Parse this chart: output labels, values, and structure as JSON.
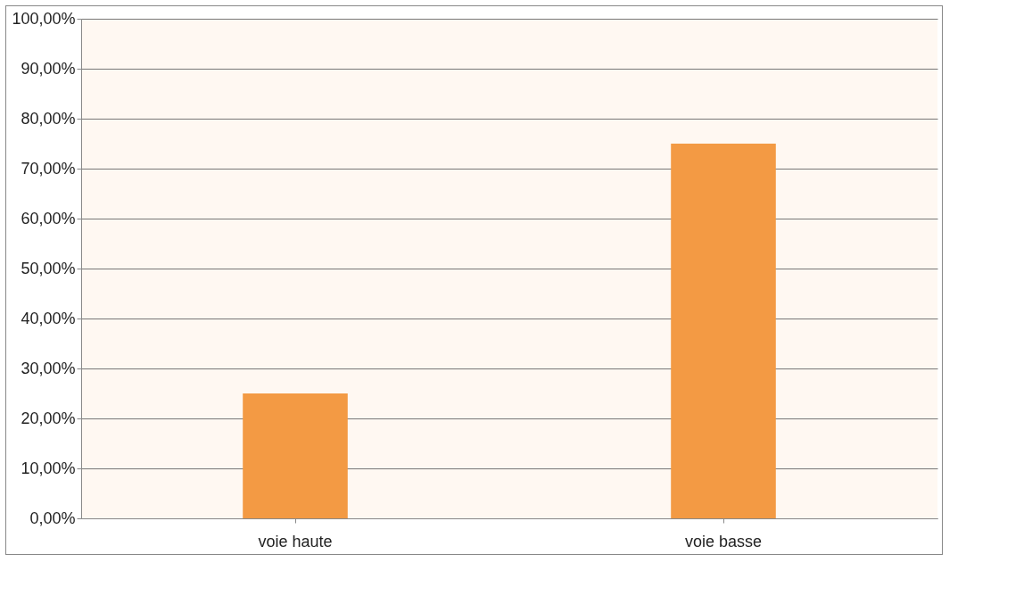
{
  "chart_data": {
    "type": "bar",
    "categories": [
      "voie haute",
      "voie basse"
    ],
    "values": [
      25,
      75
    ],
    "color": "#f39a44",
    "ylim": [
      0,
      100
    ],
    "yticks": [
      {
        "value": 0,
        "label": "0,00%"
      },
      {
        "value": 10,
        "label": "10,00%"
      },
      {
        "value": 20,
        "label": "20,00%"
      },
      {
        "value": 30,
        "label": "30,00%"
      },
      {
        "value": 40,
        "label": "40,00%"
      },
      {
        "value": 50,
        "label": "50,00%"
      },
      {
        "value": 60,
        "label": "60,00%"
      },
      {
        "value": 70,
        "label": "70,00%"
      },
      {
        "value": 80,
        "label": "80,00%"
      },
      {
        "value": 90,
        "label": "90,00%"
      },
      {
        "value": 100,
        "label": "100,00%"
      }
    ],
    "grid": "y"
  }
}
